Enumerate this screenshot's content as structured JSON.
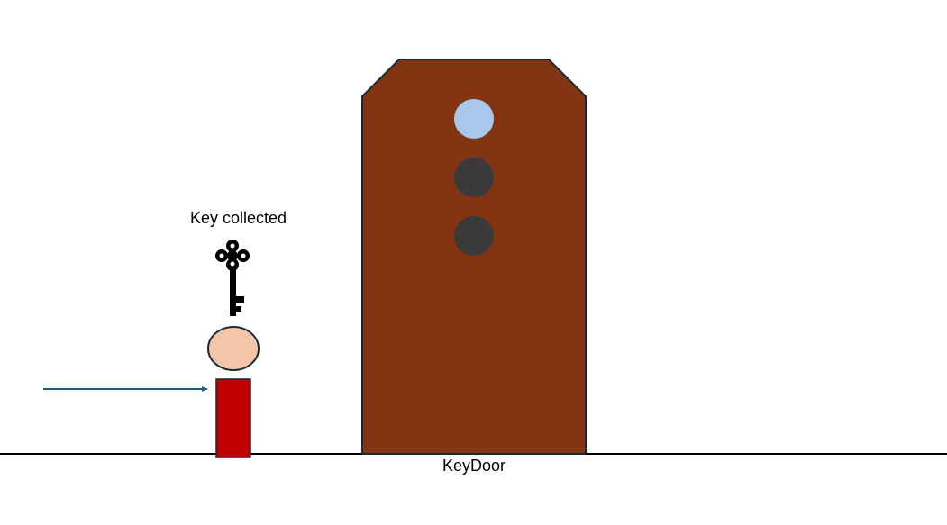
{
  "status": {
    "key_status_text": "Key collected"
  },
  "door": {
    "name": "KeyDoor",
    "body_color": "#833411",
    "outline_color": "#1a2a33",
    "lights": [
      {
        "state": "on",
        "color": "#a7c8eb"
      },
      {
        "state": "off",
        "color": "#3a3a3a"
      },
      {
        "state": "off",
        "color": "#3a3a3a"
      }
    ]
  },
  "player": {
    "head_color": "#f5c5aa",
    "body_color": "#c00000"
  },
  "key": {
    "icon": "skeleton-key-icon",
    "color": "#000000"
  },
  "movement_arrow": {
    "direction": "right",
    "color": "#1f5a80"
  },
  "ground": {
    "color": "#000000"
  }
}
